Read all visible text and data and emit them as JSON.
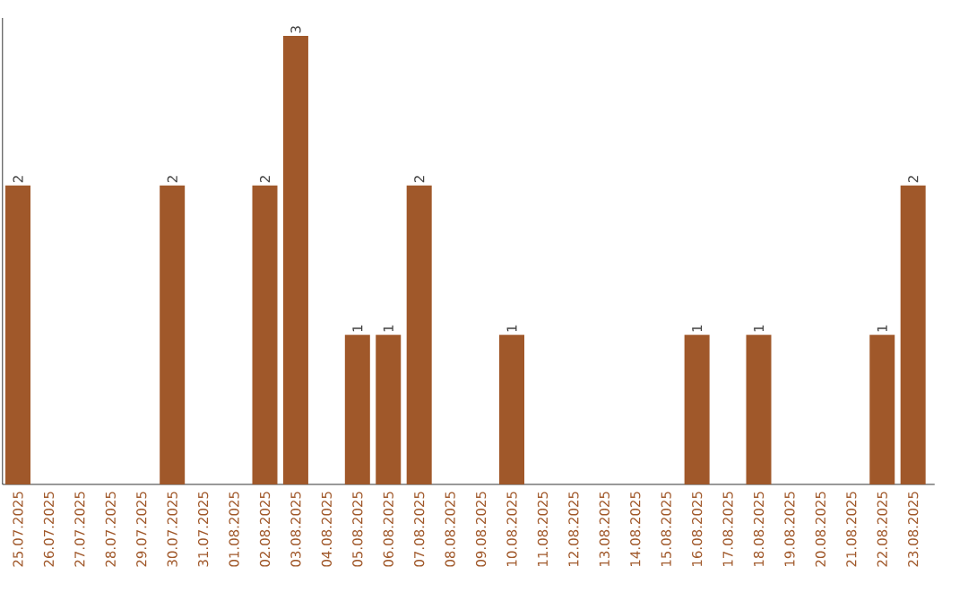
{
  "chart_data": {
    "type": "bar",
    "categories": [
      "25.07.2025",
      "26.07.2025",
      "27.07.2025",
      "28.07.2025",
      "29.07.2025",
      "30.07.2025",
      "31.07.2025",
      "01.08.2025",
      "02.08.2025",
      "03.08.2025",
      "04.08.2025",
      "05.08.2025",
      "06.08.2025",
      "07.08.2025",
      "08.08.2025",
      "09.08.2025",
      "10.08.2025",
      "11.08.2025",
      "12.08.2025",
      "13.08.2025",
      "14.08.2025",
      "15.08.2025",
      "16.08.2025",
      "17.08.2025",
      "18.08.2025",
      "19.08.2025",
      "20.08.2025",
      "21.08.2025",
      "22.08.2025",
      "23.08.2025"
    ],
    "values": [
      2,
      0,
      0,
      0,
      0,
      2,
      0,
      0,
      2,
      3,
      0,
      1,
      1,
      2,
      0,
      0,
      1,
      0,
      0,
      0,
      0,
      0,
      1,
      0,
      1,
      0,
      0,
      0,
      1,
      2
    ],
    "value_labels": [
      "2",
      null,
      null,
      null,
      null,
      "2",
      null,
      null,
      "2",
      "3",
      null,
      "1",
      "1",
      "2",
      null,
      null,
      "1",
      null,
      null,
      null,
      null,
      null,
      "1",
      null,
      "1",
      null,
      null,
      null,
      "1",
      "2"
    ],
    "color": "#a0582a"
  }
}
